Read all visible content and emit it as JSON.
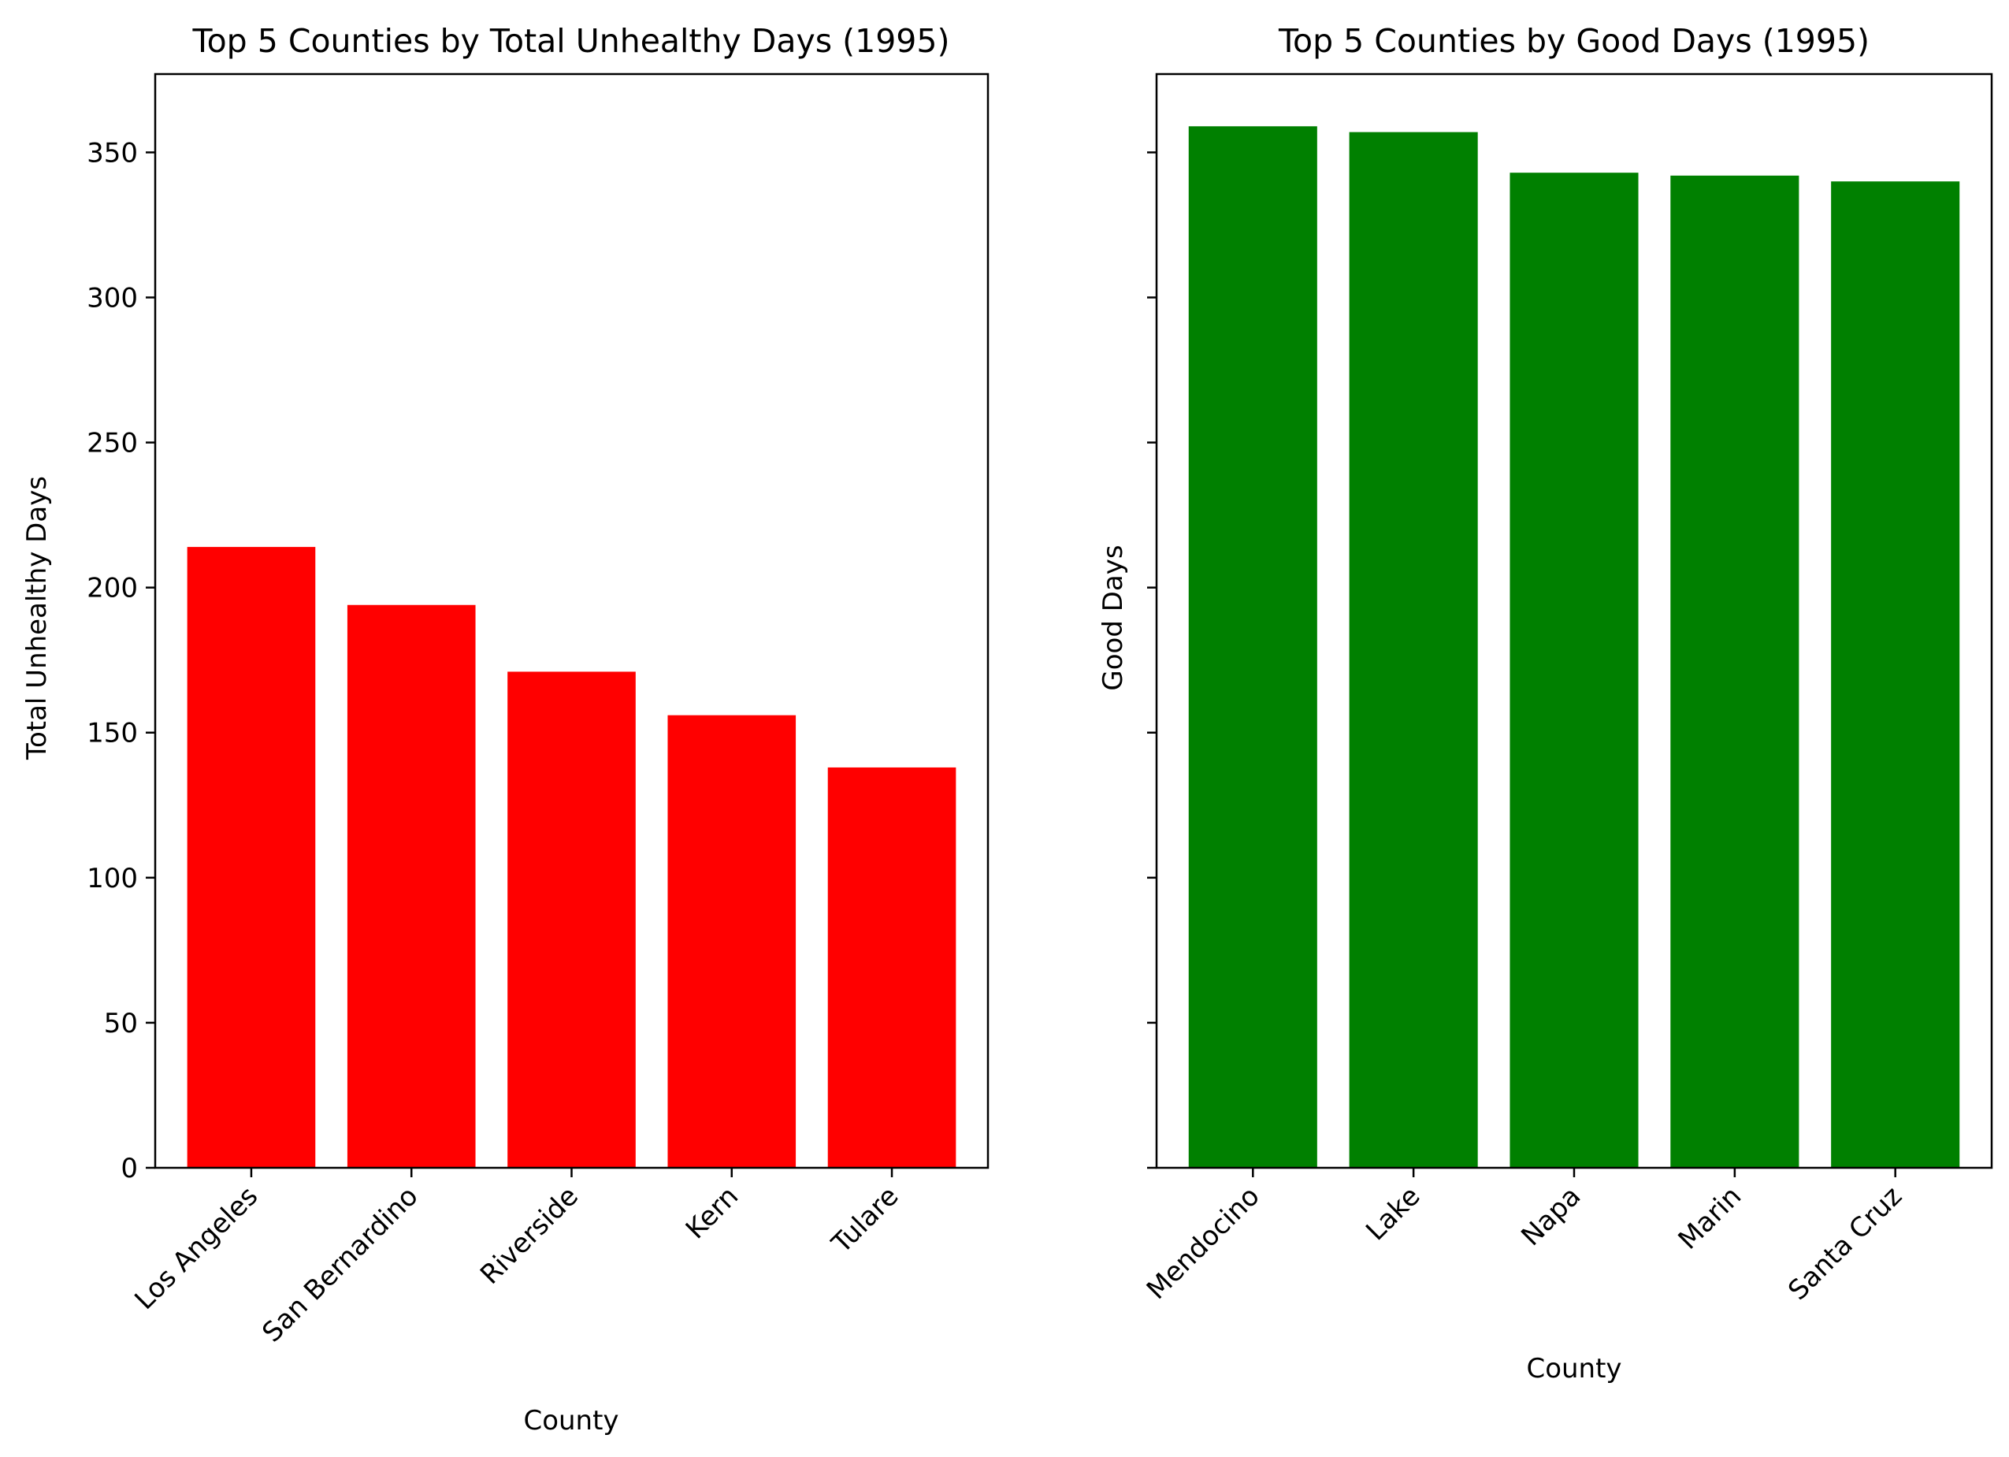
{
  "chart_data": [
    {
      "type": "bar",
      "title": "Top 5 Counties by Total Unhealthy Days (1995)",
      "xlabel": "County",
      "ylabel": "Total Unhealthy Days",
      "categories": [
        "Los Angeles",
        "San Bernardino",
        "Riverside",
        "Kern",
        "Tulare"
      ],
      "values": [
        214,
        194,
        171,
        156,
        138
      ],
      "color": "#ff0000",
      "ylim": [
        0,
        377
      ],
      "yticks": [
        0,
        50,
        100,
        150,
        200,
        250,
        300,
        350
      ],
      "show_ytick_labels": true,
      "grid": false,
      "xtick_rotation": 45
    },
    {
      "type": "bar",
      "title": "Top 5 Counties by Good Days (1995)",
      "xlabel": "County",
      "ylabel": "Good Days",
      "categories": [
        "Mendocino",
        "Lake",
        "Napa",
        "Marin",
        "Santa Cruz"
      ],
      "values": [
        359,
        357,
        343,
        342,
        340
      ],
      "color": "#008000",
      "ylim": [
        0,
        377
      ],
      "yticks": [
        0,
        50,
        100,
        150,
        200,
        250,
        300,
        350
      ],
      "show_ytick_labels": false,
      "grid": false,
      "xtick_rotation": 45
    }
  ]
}
